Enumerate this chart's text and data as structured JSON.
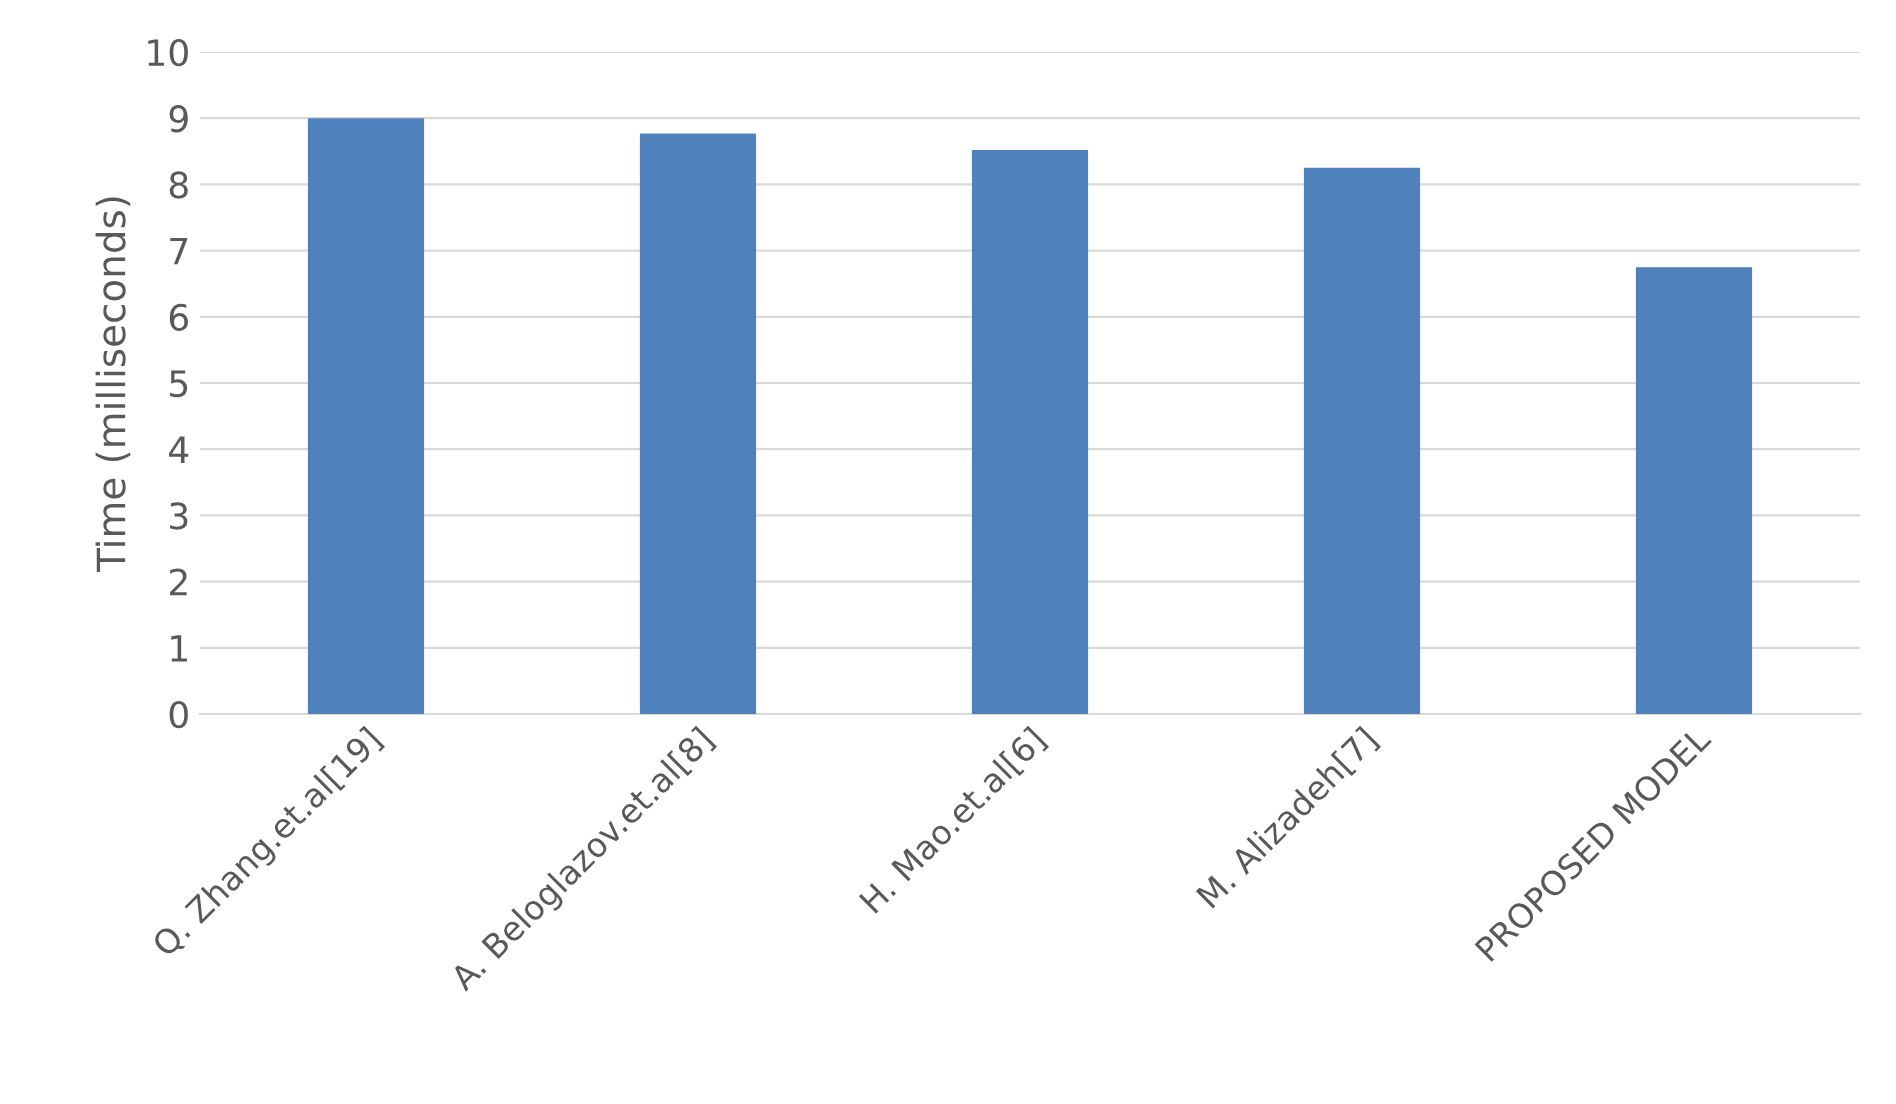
{
  "chart_data": {
    "type": "bar",
    "ylabel": "Time (milliseconds)",
    "categories": [
      "Q. Zhang.et.al[19]",
      "A. Beloglazov.et.al[8]",
      "H. Mao.et.al[6]",
      "M. Alizadeh[7]",
      "PROPOSED MODEL"
    ],
    "values": [
      9.0,
      8.77,
      8.52,
      8.25,
      6.75
    ],
    "color": "#4f81bd",
    "ylim": [
      0,
      10
    ],
    "yticks": [
      0,
      1,
      2,
      3,
      4,
      5,
      6,
      7,
      8,
      9,
      10
    ],
    "grid": "y"
  }
}
